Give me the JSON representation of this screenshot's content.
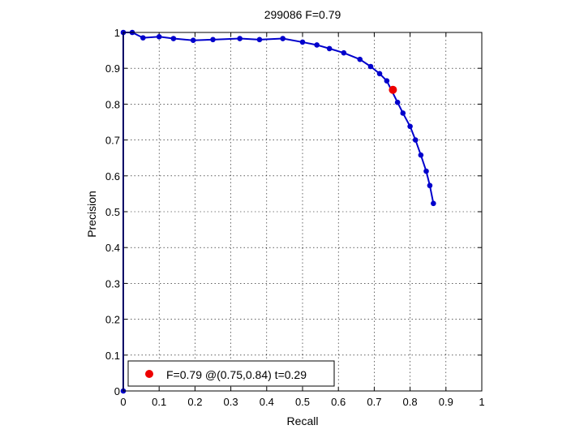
{
  "chart_data": {
    "type": "line",
    "title": "299086 F=0.79",
    "xlabel": "Recall",
    "ylabel": "Precision",
    "xlim": [
      0,
      1
    ],
    "ylim": [
      0,
      1
    ],
    "grid": true,
    "xticks": [
      "0",
      "0.1",
      "0.2",
      "0.3",
      "0.4",
      "0.5",
      "0.6",
      "0.7",
      "0.8",
      "0.9",
      "1"
    ],
    "yticks": [
      "0",
      "0.1",
      "0.2",
      "0.3",
      "0.4",
      "0.5",
      "0.6",
      "0.7",
      "0.8",
      "0.9",
      "1"
    ],
    "series": [
      {
        "color": "#0000cc",
        "x": [
          0,
          0,
          0.025,
          0.055,
          0.1,
          0.14,
          0.195,
          0.25,
          0.325,
          0.38,
          0.445,
          0.5,
          0.54,
          0.575,
          0.615,
          0.66,
          0.69,
          0.715,
          0.735,
          0.765,
          0.78,
          0.8,
          0.815,
          0.83,
          0.845,
          0.855,
          0.865
        ],
        "y": [
          0,
          1,
          1,
          0.985,
          0.988,
          0.983,
          0.978,
          0.98,
          0.983,
          0.98,
          0.983,
          0.973,
          0.965,
          0.955,
          0.943,
          0.925,
          0.905,
          0.885,
          0.865,
          0.805,
          0.775,
          0.738,
          0.7,
          0.658,
          0.613,
          0.573,
          0.523
        ]
      }
    ],
    "highlight": {
      "x": 0.752,
      "y": 0.84,
      "color": "#ee0000"
    },
    "legend": {
      "position": "bottom-left",
      "label": "F=0.79 @(0.75,0.84) t=0.29"
    }
  }
}
